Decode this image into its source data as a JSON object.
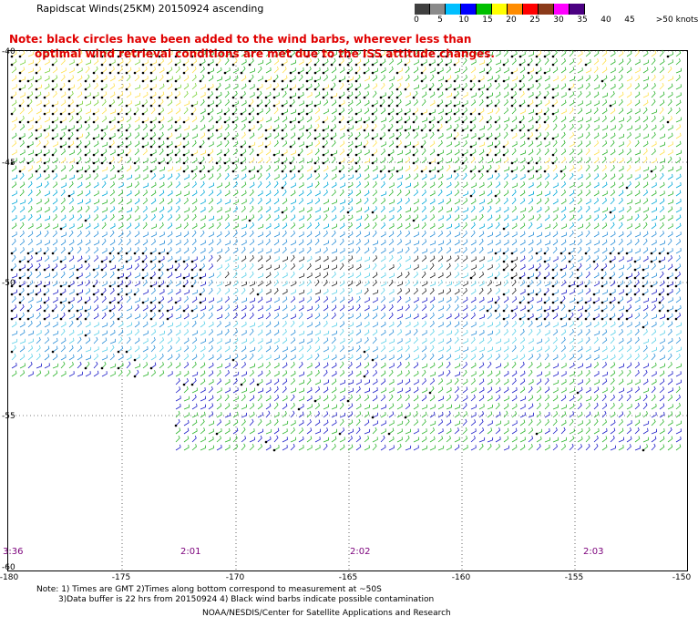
{
  "title": "Rapidscat Winds(25KM) 20150924 ascending",
  "note": {
    "line1": "Note: black circles have been added to the wind barbs, wherever less than",
    "line2": "optimal wind retrieval conditions are met due to the ISS attitude changes."
  },
  "legend": {
    "labels": [
      "0",
      "5",
      "10",
      "15",
      "20",
      "25",
      "30",
      "35",
      "40",
      "45",
      ">50 knots"
    ],
    "colors": [
      "#404040",
      "#8a8a8a",
      "#00bfff",
      "#0000ff",
      "#00c000",
      "#ffff00",
      "#ff8c00",
      "#ff0000",
      "#8b3a1a",
      "#ff00ff",
      "#4b0082"
    ]
  },
  "lat_labels": [
    "-40",
    "-45",
    "-50",
    "-55",
    "-60"
  ],
  "lon_labels": [
    "-180",
    "-175",
    "-170",
    "-165",
    "-160",
    "-155",
    "-150"
  ],
  "time_labels": [
    "3:36",
    "2:01",
    "2:02",
    "2:03"
  ],
  "footer": {
    "line1": "Note: 1) Times are GMT 2)Times along bottom correspond to measurement at ~50S",
    "line2": "3)Data buffer is 22 hrs from 20150924 4) Black wind barbs indicate possible contamination",
    "line3": "NOAA/NESDIS/Center for Satellite Applications and Research"
  }
}
